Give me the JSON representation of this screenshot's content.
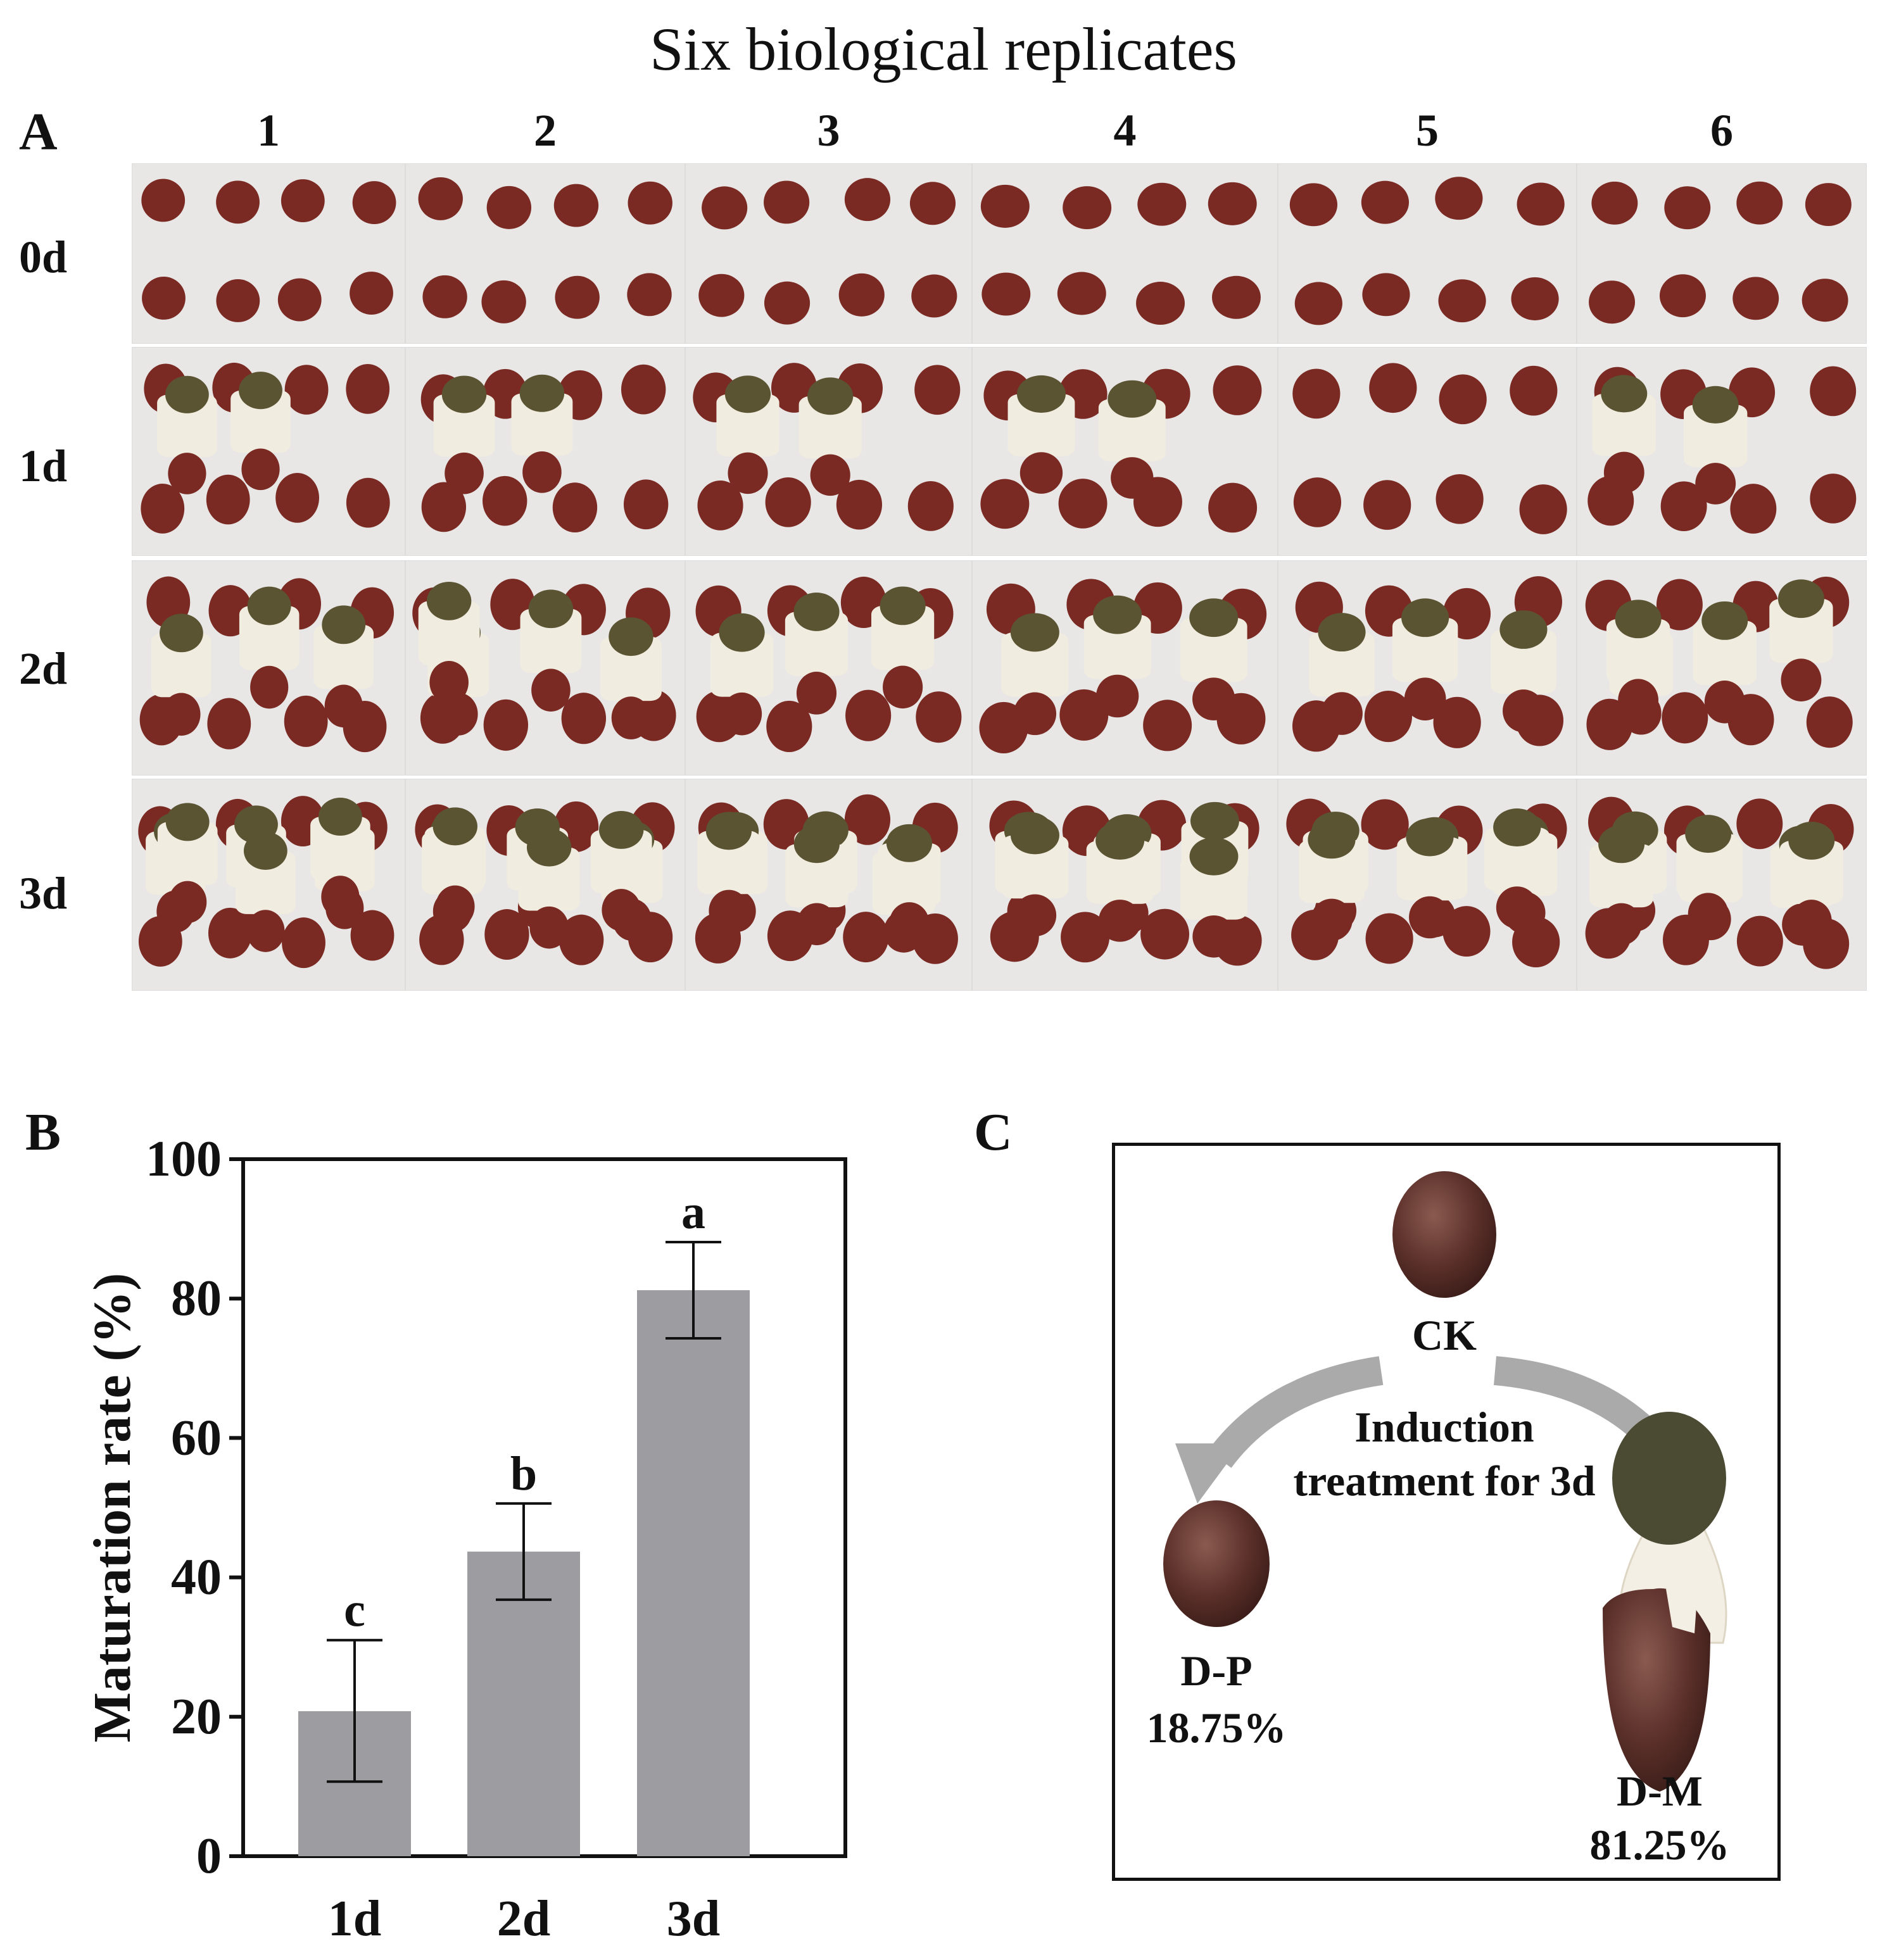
{
  "figure_title": "Six biological replicates",
  "panel_labels": {
    "a": "A",
    "b": "B",
    "c": "C"
  },
  "panel_a": {
    "replicates": [
      "1",
      "2",
      "3",
      "4",
      "5",
      "6"
    ],
    "timepoints": [
      "0d",
      "1d",
      "2d",
      "3d"
    ],
    "colors": {
      "egg": "#7a2a22",
      "veil": "#f1ece0",
      "cap": "#5b5433",
      "background": "#e8e7e6"
    }
  },
  "chart_data": {
    "type": "bar",
    "categories": [
      "1d",
      "2d",
      "3d"
    ],
    "values": [
      20.8,
      43.7,
      81.2
    ],
    "error_upper": [
      31.0,
      50.6,
      88.1
    ],
    "error_lower": [
      10.7,
      36.8,
      74.3
    ],
    "significance_letters": [
      "c",
      "b",
      "a"
    ],
    "ylabel": "Maturation rate (%)",
    "xlabel": "",
    "ylim": [
      0,
      100
    ],
    "yticks": [
      "0",
      "20",
      "40",
      "60",
      "80",
      "100"
    ],
    "grid": false,
    "bar_color": "#9d9ca1"
  },
  "panel_c": {
    "ck_label": "CK",
    "treatment_line1": "Induction",
    "treatment_line2": "treatment for 3d",
    "dp_label": "D-P",
    "dp_percent": "18.75%",
    "dm_label": "D-M",
    "dm_percent": "81.25%",
    "arrow_color": "#a9aaa9"
  }
}
